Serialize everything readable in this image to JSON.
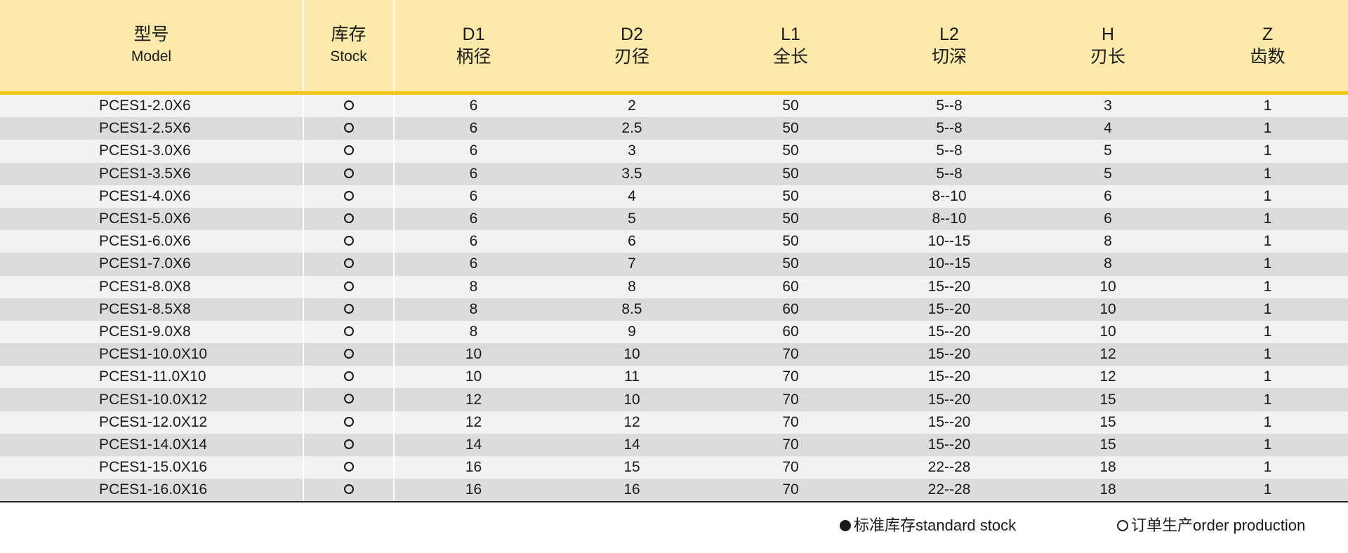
{
  "header": {
    "model": {
      "zh": "型号",
      "en": "Model"
    },
    "stock": {
      "zh": "库存",
      "en": "Stock"
    },
    "d1": {
      "code": "D1",
      "zh": "柄径"
    },
    "d2": {
      "code": "D2",
      "zh": "刃径"
    },
    "l1": {
      "code": "L1",
      "zh": "全长"
    },
    "l2": {
      "code": "L2",
      "zh": "切深"
    },
    "h": {
      "code": "H",
      "zh": "刃长"
    },
    "z": {
      "code": "Z",
      "zh": "齿数"
    }
  },
  "stock_symbol": "order-production-hollow-circle-icon",
  "rows": [
    {
      "model": "PCES1-2.0X6",
      "d1": "6",
      "d2": "2",
      "l1": "50",
      "l2": "5--8",
      "h": "3",
      "z": "1"
    },
    {
      "model": "PCES1-2.5X6",
      "d1": "6",
      "d2": "2.5",
      "l1": "50",
      "l2": "5--8",
      "h": "4",
      "z": "1"
    },
    {
      "model": "PCES1-3.0X6",
      "d1": "6",
      "d2": "3",
      "l1": "50",
      "l2": "5--8",
      "h": "5",
      "z": "1"
    },
    {
      "model": "PCES1-3.5X6",
      "d1": "6",
      "d2": "3.5",
      "l1": "50",
      "l2": "5--8",
      "h": "5",
      "z": "1"
    },
    {
      "model": "PCES1-4.0X6",
      "d1": "6",
      "d2": "4",
      "l1": "50",
      "l2": "8--10",
      "h": "6",
      "z": "1"
    },
    {
      "model": "PCES1-5.0X6",
      "d1": "6",
      "d2": "5",
      "l1": "50",
      "l2": "8--10",
      "h": "6",
      "z": "1"
    },
    {
      "model": "PCES1-6.0X6",
      "d1": "6",
      "d2": "6",
      "l1": "50",
      "l2": "10--15",
      "h": "8",
      "z": "1"
    },
    {
      "model": "PCES1-7.0X6",
      "d1": "6",
      "d2": "7",
      "l1": "50",
      "l2": "10--15",
      "h": "8",
      "z": "1"
    },
    {
      "model": "PCES1-8.0X8",
      "d1": "8",
      "d2": "8",
      "l1": "60",
      "l2": "15--20",
      "h": "10",
      "z": "1"
    },
    {
      "model": "PCES1-8.5X8",
      "d1": "8",
      "d2": "8.5",
      "l1": "60",
      "l2": "15--20",
      "h": "10",
      "z": "1"
    },
    {
      "model": "PCES1-9.0X8",
      "d1": "8",
      "d2": "9",
      "l1": "60",
      "l2": "15--20",
      "h": "10",
      "z": "1"
    },
    {
      "model": "PCES1-10.0X10",
      "d1": "10",
      "d2": "10",
      "l1": "70",
      "l2": "15--20",
      "h": "12",
      "z": "1"
    },
    {
      "model": "PCES1-11.0X10",
      "d1": "10",
      "d2": "11",
      "l1": "70",
      "l2": "15--20",
      "h": "12",
      "z": "1"
    },
    {
      "model": "PCES1-10.0X12",
      "d1": "12",
      "d2": "10",
      "l1": "70",
      "l2": "15--20",
      "h": "15",
      "z": "1"
    },
    {
      "model": "PCES1-12.0X12",
      "d1": "12",
      "d2": "12",
      "l1": "70",
      "l2": "15--20",
      "h": "15",
      "z": "1"
    },
    {
      "model": "PCES1-14.0X14",
      "d1": "14",
      "d2": "14",
      "l1": "70",
      "l2": "15--20",
      "h": "15",
      "z": "1"
    },
    {
      "model": "PCES1-15.0X16",
      "d1": "16",
      "d2": "15",
      "l1": "70",
      "l2": "22--28",
      "h": "18",
      "z": "1"
    },
    {
      "model": "PCES1-16.0X16",
      "d1": "16",
      "d2": "16",
      "l1": "70",
      "l2": "22--28",
      "h": "18",
      "z": "1"
    }
  ],
  "legend": {
    "standard": {
      "zh": "标准库存",
      "en": "standard stock",
      "icon": "filled-circle-icon"
    },
    "order": {
      "zh": "订单生产",
      "en": "order production",
      "icon": "hollow-circle-icon"
    }
  },
  "colors": {
    "header_bg": "#fde9a9",
    "header_rule": "#f7c519",
    "row_light": "#f2f2f2",
    "row_dark": "#dcdcdc"
  }
}
